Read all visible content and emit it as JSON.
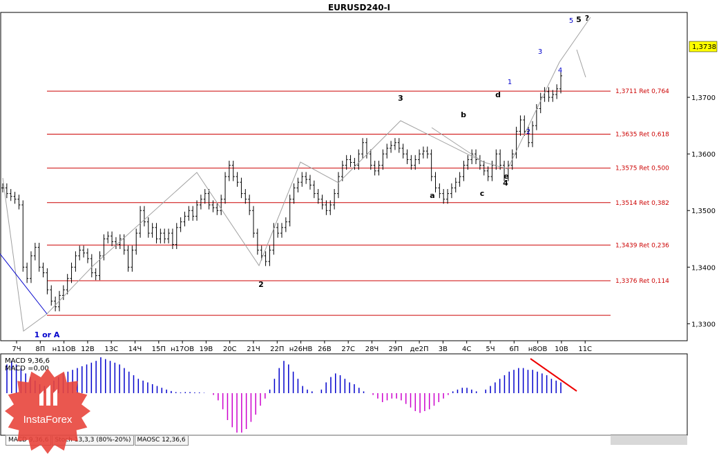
{
  "title": "EURUSD240-I",
  "price_badge": "1,3738",
  "macd_label": "MACD 9,36,6",
  "macd_value": "MACD =0,00",
  "tabs": [
    "MACD 9,36,6",
    "Stoch 13,3,3 (80%-20%)",
    "MAOSC 12,36,6"
  ],
  "logo_text": "InstaForex",
  "colors": {
    "bull_hist": "#0000cc",
    "bear_hist": "#cc00cc",
    "fib_line": "#cc0000",
    "trend_arrow": "#ee0000",
    "badge": "#ffff00",
    "logo": "#e8453c"
  },
  "chart_data": {
    "type": "line",
    "title": "EURUSD240-I",
    "ylim": [
      1.327,
      1.385
    ],
    "y_ticks": [
      "1,3300",
      "1,3400",
      "1,3500",
      "1,3600",
      "1,3700"
    ],
    "x_ticks": [
      "7Ч",
      "8П",
      "н11ОВ",
      "12В",
      "13С",
      "14Ч",
      "15П",
      "н17ОВ",
      "19В",
      "20С",
      "21Ч",
      "22П",
      "н26НВ",
      "26В",
      "27С",
      "28Ч",
      "29П",
      "дe2П",
      "3В",
      "4С",
      "5Ч",
      "6П",
      "н8ОВ",
      "10В",
      "11С"
    ],
    "fib_levels": [
      {
        "value": 1.3711,
        "label": "1,3711 Ret 0,764"
      },
      {
        "value": 1.3635,
        "label": "1,3635 Ret 0,618"
      },
      {
        "value": 1.3575,
        "label": "1,3575 Ret 0,500"
      },
      {
        "value": 1.3514,
        "label": "1,3514 Ret 0,382"
      },
      {
        "value": 1.3439,
        "label": "1,3439 Ret 0,236"
      },
      {
        "value": 1.3376,
        "label": "1,3376 Ret 0,114"
      },
      {
        "value": 1.3315,
        "label": ""
      }
    ],
    "series": [
      {
        "values": [
          1.354,
          1.353,
          1.3525,
          1.352,
          1.351,
          1.34,
          1.338,
          1.342,
          1.3435,
          1.34,
          1.339,
          1.336,
          1.334,
          1.333,
          1.335,
          1.336,
          1.338,
          1.34,
          1.342,
          1.343,
          1.3425,
          1.3415,
          1.339,
          1.3385,
          1.342,
          1.345,
          1.3455,
          1.3445,
          1.344,
          1.345,
          1.343,
          1.34,
          1.343,
          1.346,
          1.35,
          1.348,
          1.346,
          1.347,
          1.345,
          1.346,
          1.345,
          1.346,
          1.344,
          1.347,
          1.348,
          1.349,
          1.35,
          1.349,
          1.351,
          1.352,
          1.353,
          1.351,
          1.3505,
          1.35,
          1.352,
          1.356,
          1.358,
          1.356,
          1.355,
          1.353,
          1.352,
          1.35,
          1.346,
          1.343,
          1.342,
          1.341,
          1.343,
          1.347,
          1.346,
          1.347,
          1.348,
          1.352,
          1.354,
          1.355,
          1.356,
          1.3555,
          1.3545,
          1.353,
          1.352,
          1.351,
          1.35,
          1.351,
          1.353,
          1.356,
          1.358,
          1.359,
          1.3585,
          1.358,
          1.36,
          1.362,
          1.36,
          1.358,
          1.357,
          1.358,
          1.36,
          1.361,
          1.3615,
          1.362,
          1.361,
          1.36,
          1.359,
          1.358,
          1.359,
          1.36,
          1.3605,
          1.36,
          1.356,
          1.354,
          1.353,
          1.352,
          1.353,
          1.354,
          1.355,
          1.356,
          1.358,
          1.359,
          1.36,
          1.359,
          1.358,
          1.357,
          1.356,
          1.358,
          1.36,
          1.358,
          1.356,
          1.358,
          1.36,
          1.364,
          1.366,
          1.364,
          1.362,
          1.365,
          1.368,
          1.37,
          1.371,
          1.37,
          1.3705,
          1.3715,
          1.3738
        ]
      },
      {
        "name": "MACD 9,36,6",
        "values": [
          0.8,
          0.9,
          0.8,
          0.7,
          0.55,
          0.45,
          0.35,
          0.25,
          0.2,
          0.2,
          0.35,
          0.45,
          0.55,
          0.6,
          0.65,
          0.7,
          0.75,
          0.8,
          0.85,
          0.9,
          1.0,
          0.95,
          0.9,
          0.85,
          0.8,
          0.7,
          0.6,
          0.5,
          0.4,
          0.35,
          0.3,
          0.25,
          0.2,
          0.15,
          0.1,
          0.06,
          0.03,
          0.02,
          0.03,
          0.03,
          0.02,
          0.02,
          0.01,
          0.0,
          -0.05,
          -0.2,
          -0.45,
          -0.75,
          -0.95,
          -1.1,
          -1.1,
          -1.0,
          -0.8,
          -0.6,
          -0.35,
          -0.15,
          0.1,
          0.4,
          0.7,
          0.9,
          0.8,
          0.6,
          0.4,
          0.2,
          0.1,
          0.05,
          0.0,
          0.1,
          0.3,
          0.45,
          0.55,
          0.5,
          0.4,
          0.3,
          0.25,
          0.15,
          0.05,
          0.0,
          -0.05,
          -0.15,
          -0.25,
          -0.2,
          -0.15,
          -0.15,
          -0.2,
          -0.3,
          -0.4,
          -0.5,
          -0.55,
          -0.5,
          -0.45,
          -0.35,
          -0.25,
          -0.15,
          -0.05,
          0.05,
          0.1,
          0.15,
          0.15,
          0.1,
          0.05,
          0.0,
          0.1,
          0.2,
          0.3,
          0.4,
          0.5,
          0.6,
          0.65,
          0.7,
          0.7,
          0.65,
          0.65,
          0.6,
          0.55,
          0.5,
          0.4,
          0.35,
          0.3
        ]
      }
    ],
    "wave_labels": [
      {
        "text": "1 or A",
        "color": "#0000cc",
        "bold": true
      },
      {
        "text": "2",
        "color": "#000000",
        "bold": true
      },
      {
        "text": "3",
        "color": "#000000",
        "bold": true
      },
      {
        "text": "4",
        "color": "#000000",
        "bold": true
      },
      {
        "text": "5",
        "color": "#000000",
        "bold": true
      },
      {
        "text": "?",
        "color": "#000000",
        "bold": true
      },
      {
        "text": "a",
        "color": "#000000",
        "bold": true
      },
      {
        "text": "b",
        "color": "#000000",
        "bold": true
      },
      {
        "text": "c",
        "color": "#000000",
        "bold": true
      },
      {
        "text": "d",
        "color": "#000000",
        "bold": true
      },
      {
        "text": "e",
        "color": "#000000",
        "bold": true
      },
      {
        "text": "1",
        "color": "#0000cc",
        "bold": false
      },
      {
        "text": "2",
        "color": "#0000cc",
        "bold": false
      },
      {
        "text": "3",
        "color": "#0000cc",
        "bold": false
      },
      {
        "text": "4",
        "color": "#0000cc",
        "bold": false
      },
      {
        "text": "5",
        "color": "#0000cc",
        "bold": false
      }
    ]
  }
}
